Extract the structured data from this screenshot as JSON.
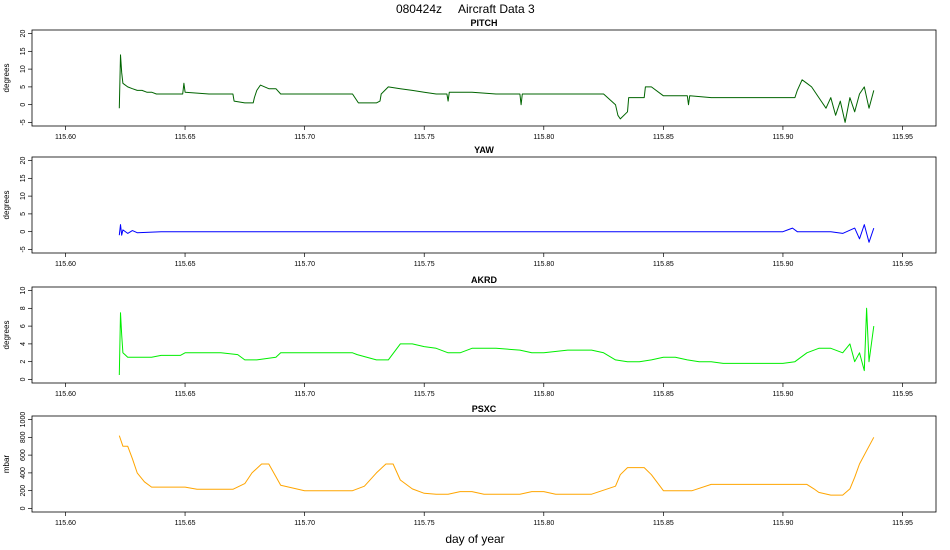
{
  "header": {
    "date_code": "080424z",
    "title": "Aircraft Data 3"
  },
  "x_axis_label": "day of year",
  "chart_data": [
    {
      "type": "line",
      "title": "PITCH",
      "ylabel": "degrees",
      "color": "#006400",
      "xlim": [
        115.6,
        115.95
      ],
      "ylim": [
        -5,
        20
      ],
      "yticks": [
        -5,
        0,
        5,
        10,
        15,
        20
      ],
      "xticks": [
        "115.60",
        "115.65",
        "115.70",
        "115.75",
        "115.80",
        "115.85",
        "115.90",
        "115.95"
      ],
      "x": [
        115.6225,
        115.623,
        115.6235,
        115.624,
        115.626,
        115.628,
        115.63,
        115.632,
        115.634,
        115.636,
        115.638,
        115.64,
        115.645,
        115.649,
        115.6495,
        115.65,
        115.66,
        115.67,
        115.6705,
        115.675,
        115.6785,
        115.679,
        115.68,
        115.6815,
        115.685,
        115.688,
        115.69,
        115.7,
        115.71,
        115.72,
        115.7225,
        115.7255,
        115.73,
        115.7315,
        115.732,
        115.735,
        115.74,
        115.745,
        115.75,
        115.755,
        115.7595,
        115.76,
        115.7605,
        115.765,
        115.77,
        115.78,
        115.79,
        115.7905,
        115.791,
        115.792,
        115.8,
        115.81,
        115.82,
        115.825,
        115.83,
        115.831,
        115.832,
        115.835,
        115.8355,
        115.84,
        115.842,
        115.8425,
        115.845,
        115.85,
        115.855,
        115.86,
        115.8605,
        115.861,
        115.87,
        115.88,
        115.89,
        115.9,
        115.905,
        115.906,
        115.908,
        115.91,
        115.912,
        115.914,
        115.916,
        115.918,
        115.92,
        115.922,
        115.924,
        115.926,
        115.928,
        115.93,
        115.932,
        115.934,
        115.936,
        115.938
      ],
      "values": [
        -1,
        14,
        9,
        6,
        5,
        4.5,
        4,
        4,
        3.5,
        3.5,
        3,
        3,
        3,
        3,
        6,
        3.5,
        3,
        3,
        1,
        0.5,
        0.5,
        2,
        4,
        5.5,
        4.5,
        4.5,
        3,
        3,
        3,
        3,
        0.5,
        0.5,
        0.5,
        1,
        3,
        5,
        4.5,
        4,
        3.5,
        3,
        3,
        1,
        3.5,
        3.5,
        3.5,
        3,
        3,
        0,
        3,
        3,
        3,
        3,
        3,
        3,
        0,
        -3,
        -4,
        -2,
        2,
        2,
        2,
        5,
        5,
        2.5,
        2.5,
        2.5,
        0,
        2.5,
        2,
        2,
        2,
        2,
        2,
        4,
        7,
        6,
        5,
        3,
        1,
        -1,
        2,
        -3,
        1,
        -5,
        2,
        -2,
        3,
        5,
        -1,
        4
      ]
    },
    {
      "type": "line",
      "title": "YAW",
      "ylabel": "degrees",
      "color": "#0000ff",
      "xlim": [
        115.6,
        115.95
      ],
      "ylim": [
        -5,
        20
      ],
      "yticks": [
        -5,
        0,
        5,
        10,
        15,
        20
      ],
      "xticks": [
        "115.60",
        "115.65",
        "115.70",
        "115.75",
        "115.80",
        "115.85",
        "115.90",
        "115.95"
      ],
      "x": [
        115.6225,
        115.623,
        115.6235,
        115.624,
        115.626,
        115.628,
        115.63,
        115.64,
        115.65,
        115.7,
        115.75,
        115.8,
        115.85,
        115.9,
        115.902,
        115.904,
        115.906,
        115.91,
        115.92,
        115.925,
        115.93,
        115.932,
        115.934,
        115.936,
        115.938
      ],
      "values": [
        -1,
        2,
        -1,
        0.5,
        -0.5,
        0.3,
        -0.3,
        0,
        0,
        0,
        0,
        0,
        0,
        0,
        0.5,
        1,
        0,
        0,
        0,
        -0.5,
        1,
        -2,
        2,
        -3,
        1
      ]
    },
    {
      "type": "line",
      "title": "AKRD",
      "ylabel": "degrees",
      "color": "#00ee00",
      "xlim": [
        115.6,
        115.95
      ],
      "ylim": [
        0,
        10
      ],
      "yticks": [
        0,
        2,
        4,
        6,
        8,
        10
      ],
      "xticks": [
        "115.60",
        "115.65",
        "115.70",
        "115.75",
        "115.80",
        "115.85",
        "115.90",
        "115.95"
      ],
      "x": [
        115.6225,
        115.623,
        115.6235,
        115.624,
        115.626,
        115.628,
        115.632,
        115.636,
        115.64,
        115.648,
        115.65,
        115.665,
        115.672,
        115.675,
        115.68,
        115.688,
        115.69,
        115.7,
        115.71,
        115.72,
        115.722,
        115.73,
        115.735,
        115.74,
        115.745,
        115.75,
        115.755,
        115.76,
        115.765,
        115.77,
        115.78,
        115.79,
        115.795,
        115.8,
        115.81,
        115.82,
        115.825,
        115.83,
        115.835,
        115.84,
        115.845,
        115.85,
        115.855,
        115.86,
        115.865,
        115.87,
        115.875,
        115.88,
        115.89,
        115.9,
        115.905,
        115.91,
        115.915,
        115.92,
        115.925,
        115.928,
        115.93,
        115.932,
        115.934,
        115.935,
        115.936,
        115.938
      ],
      "values": [
        0.5,
        7.5,
        5,
        3,
        2.5,
        2.5,
        2.5,
        2.5,
        2.7,
        2.7,
        3,
        3,
        2.8,
        2.2,
        2.2,
        2.5,
        3,
        3,
        3,
        3,
        2.8,
        2.2,
        2.2,
        4,
        4,
        3.7,
        3.5,
        3,
        3,
        3.5,
        3.5,
        3.3,
        3,
        3,
        3.3,
        3.3,
        3,
        2.2,
        2,
        2,
        2.2,
        2.5,
        2.5,
        2.2,
        2,
        2,
        1.8,
        1.8,
        1.8,
        1.8,
        2,
        3,
        3.5,
        3.5,
        3,
        4,
        2,
        3,
        1,
        8,
        2,
        6
      ]
    },
    {
      "type": "line",
      "title": "PSXC",
      "ylabel": "mbar",
      "color": "#ffa500",
      "xlim": [
        115.6,
        115.95
      ],
      "ylim": [
        0,
        1000
      ],
      "yticks": [
        0,
        200,
        400,
        600,
        800,
        1000
      ],
      "xticks": [
        "115.60",
        "115.65",
        "115.70",
        "115.75",
        "115.80",
        "115.85",
        "115.90",
        "115.95"
      ],
      "x": [
        115.6225,
        115.624,
        115.626,
        115.628,
        115.63,
        115.633,
        115.636,
        115.64,
        115.65,
        115.655,
        115.67,
        115.675,
        115.678,
        115.682,
        115.685,
        115.69,
        115.7,
        115.72,
        115.725,
        115.73,
        115.734,
        115.737,
        115.74,
        115.745,
        115.75,
        115.755,
        115.76,
        115.765,
        115.77,
        115.775,
        115.78,
        115.785,
        115.79,
        115.795,
        115.8,
        115.805,
        115.82,
        115.83,
        115.832,
        115.835,
        115.842,
        115.845,
        115.85,
        115.86,
        115.862,
        115.87,
        115.89,
        115.91,
        115.913,
        115.915,
        115.92,
        115.922,
        115.925,
        115.928,
        115.93,
        115.932,
        115.935,
        115.938
      ],
      "values": [
        820,
        700,
        700,
        560,
        400,
        300,
        240,
        240,
        240,
        215,
        215,
        280,
        400,
        500,
        500,
        260,
        200,
        200,
        250,
        400,
        500,
        500,
        320,
        220,
        170,
        160,
        160,
        190,
        190,
        160,
        160,
        160,
        160,
        190,
        190,
        160,
        160,
        250,
        380,
        460,
        460,
        380,
        200,
        200,
        200,
        270,
        270,
        270,
        220,
        180,
        150,
        150,
        150,
        220,
        350,
        500,
        650,
        800
      ]
    }
  ]
}
